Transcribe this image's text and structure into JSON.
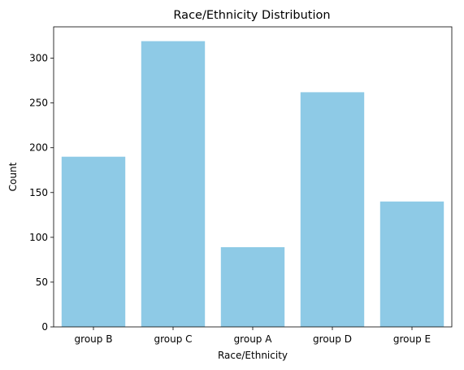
{
  "chart_data": {
    "type": "bar",
    "title": "Race/Ethnicity Distribution",
    "xlabel": "Race/Ethnicity",
    "ylabel": "Count",
    "categories": [
      "group B",
      "group C",
      "group A",
      "group D",
      "group E"
    ],
    "values": [
      190,
      319,
      89,
      262,
      140
    ],
    "ylim": [
      0,
      335
    ],
    "yticks": [
      0,
      50,
      100,
      150,
      200,
      250,
      300
    ],
    "bar_color": "#8ecae6",
    "grid": false,
    "legend": "none"
  }
}
